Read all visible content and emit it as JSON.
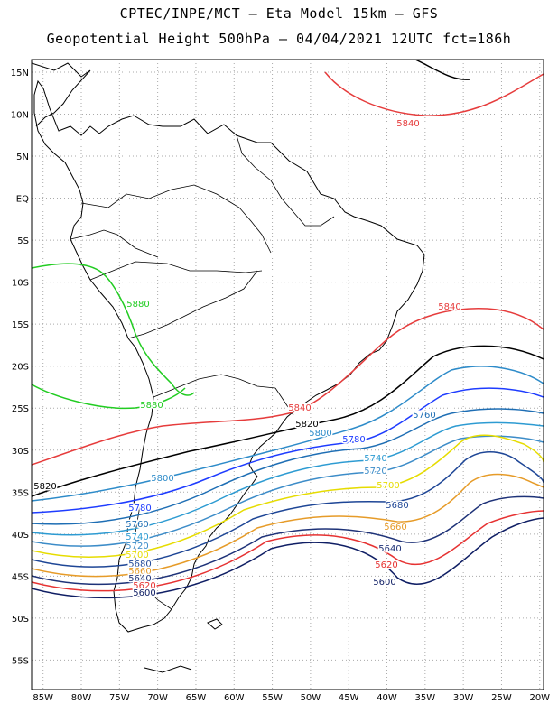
{
  "header": {
    "line1": "CPTEC/INPE/MCT –  Eta Model 15km – GFS",
    "line2": "Geopotential Height 500hPa – 04/04/2021 12UTC fct=186h"
  },
  "map": {
    "lat_labels": [
      "15N",
      "10N",
      "5N",
      "EQ",
      "5S",
      "10S",
      "15S",
      "20S",
      "25S",
      "30S",
      "35S",
      "40S",
      "45S",
      "50S",
      "55S"
    ],
    "lon_labels": [
      "85W",
      "80W",
      "75W",
      "70W",
      "65W",
      "60W",
      "55W",
      "50W",
      "45W",
      "40W",
      "35W",
      "30W",
      "25W",
      "20W"
    ],
    "lat_values": [
      15,
      10,
      5,
      0,
      -5,
      -10,
      -15,
      -20,
      -25,
      -30,
      -35,
      -40,
      -45,
      -50,
      -55
    ],
    "lon_values": [
      -85,
      -80,
      -75,
      -70,
      -65,
      -60,
      -55,
      -50,
      -45,
      -40,
      -35,
      -30,
      -25,
      -20
    ]
  },
  "contours": [
    {
      "level": "5880",
      "color": "#22cc22"
    },
    {
      "level": "5840",
      "color": "#e63c3c"
    },
    {
      "level": "5820",
      "color": "#000000"
    },
    {
      "level": "5800",
      "color": "#2d8bc9"
    },
    {
      "level": "5780",
      "color": "#1e3cff"
    },
    {
      "level": "5760",
      "color": "#1e6eb4"
    },
    {
      "level": "5740",
      "color": "#2d9bd2"
    },
    {
      "level": "5720",
      "color": "#3c8cc8"
    },
    {
      "level": "5700",
      "color": "#e6dc00"
    },
    {
      "level": "5680",
      "color": "#1e4696"
    },
    {
      "level": "5660",
      "color": "#e69b28"
    },
    {
      "level": "5640",
      "color": "#1e3278"
    },
    {
      "level": "5620",
      "color": "#e63232"
    },
    {
      "level": "5600",
      "color": "#0f1e64"
    }
  ]
}
